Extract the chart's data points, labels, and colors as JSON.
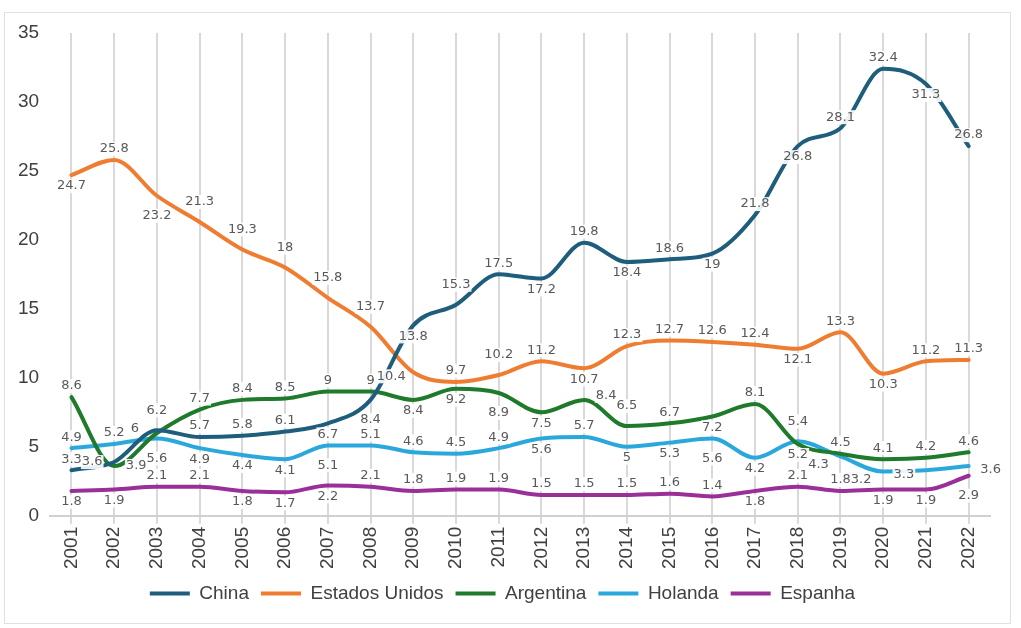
{
  "chart_data": {
    "type": "line",
    "categories": [
      "2001",
      "2002",
      "2003",
      "2004",
      "2005",
      "2006",
      "2007",
      "2008",
      "2009",
      "2010",
      "2011",
      "2012",
      "2013",
      "2014",
      "2015",
      "2016",
      "2017",
      "2018",
      "2019",
      "2020",
      "2021",
      "2022"
    ],
    "series": [
      {
        "name": "China",
        "color": "#1f5d7c",
        "values": [
          3.3,
          3.9,
          6.2,
          5.7,
          5.8,
          6.1,
          6.7,
          8.4,
          13.8,
          15.3,
          17.5,
          17.2,
          19.8,
          18.4,
          18.6,
          19,
          21.8,
          26.8,
          28.1,
          32.4,
          31.3,
          26.8
        ]
      },
      {
        "name": "Estados Unidos",
        "color": "#ee7d31",
        "values": [
          24.7,
          25.8,
          23.2,
          21.3,
          19.3,
          18,
          15.8,
          13.7,
          10.4,
          9.7,
          10.2,
          11.2,
          10.7,
          12.3,
          12.7,
          12.6,
          12.4,
          12.1,
          13.3,
          10.3,
          11.2,
          11.3
        ]
      },
      {
        "name": "Argentina",
        "color": "#1f7a2c",
        "values": [
          8.6,
          3.6,
          6.0,
          7.7,
          8.4,
          8.5,
          9,
          9,
          8.4,
          9.2,
          8.9,
          7.5,
          8.4,
          6.5,
          6.7,
          7.2,
          8.1,
          5.2,
          4.5,
          4.1,
          4.2,
          4.6
        ]
      },
      {
        "name": "Holanda",
        "color": "#2aa8dc",
        "values": [
          4.9,
          5.2,
          5.6,
          4.9,
          4.4,
          4.1,
          5.1,
          5.1,
          4.6,
          4.5,
          4.9,
          5.6,
          5.7,
          5,
          5.3,
          5.6,
          4.2,
          5.4,
          4.3,
          3.2,
          3.3,
          3.6
        ]
      },
      {
        "name": "Espanha",
        "color": "#9a2f98",
        "values": [
          1.8,
          1.9,
          2.1,
          2.1,
          1.8,
          1.7,
          2.2,
          2.1,
          1.8,
          1.9,
          1.9,
          1.5,
          1.5,
          1.5,
          1.6,
          1.4,
          1.8,
          2.1,
          1.8,
          1.9,
          1.9,
          2.9
        ]
      }
    ],
    "ylim": [
      0,
      35
    ],
    "yticks": [
      0,
      5,
      10,
      15,
      20,
      25,
      30,
      35
    ],
    "grid": "x",
    "legend": "bottom",
    "marker": "none",
    "line_style": "solid",
    "data_labels": true
  }
}
